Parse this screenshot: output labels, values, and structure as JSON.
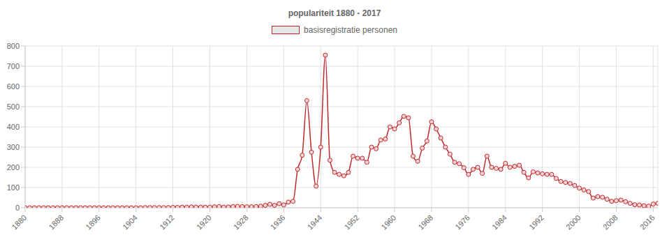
{
  "chart_data": {
    "type": "line",
    "title": "populariteit 1880 - 2017",
    "x": [
      1880,
      1881,
      1882,
      1883,
      1884,
      1885,
      1886,
      1887,
      1888,
      1889,
      1890,
      1891,
      1892,
      1893,
      1894,
      1895,
      1896,
      1897,
      1898,
      1899,
      1900,
      1901,
      1902,
      1903,
      1904,
      1905,
      1906,
      1907,
      1908,
      1909,
      1910,
      1911,
      1912,
      1913,
      1914,
      1915,
      1916,
      1917,
      1918,
      1919,
      1920,
      1921,
      1922,
      1923,
      1924,
      1925,
      1926,
      1927,
      1928,
      1929,
      1930,
      1931,
      1932,
      1933,
      1934,
      1935,
      1936,
      1937,
      1938,
      1939,
      1940,
      1941,
      1942,
      1943,
      1944,
      1945,
      1946,
      1947,
      1948,
      1949,
      1950,
      1951,
      1952,
      1953,
      1954,
      1955,
      1956,
      1957,
      1958,
      1959,
      1960,
      1961,
      1962,
      1963,
      1964,
      1965,
      1966,
      1967,
      1968,
      1969,
      1970,
      1971,
      1972,
      1973,
      1974,
      1975,
      1976,
      1977,
      1978,
      1979,
      1980,
      1981,
      1982,
      1983,
      1984,
      1985,
      1986,
      1987,
      1988,
      1989,
      1990,
      1991,
      1992,
      1993,
      1994,
      1995,
      1996,
      1997,
      1998,
      1999,
      2000,
      2001,
      2002,
      2003,
      2004,
      2005,
      2006,
      2007,
      2008,
      2009,
      2010,
      2011,
      2012,
      2013,
      2014,
      2015,
      2016,
      2017
    ],
    "series": [
      {
        "name": "basisregistratie personen",
        "color": "#c1272d",
        "marker": "circle",
        "values": [
          0,
          0,
          0,
          0,
          0,
          0,
          0,
          0,
          0,
          0,
          0,
          0,
          0,
          0,
          0,
          0,
          0,
          0,
          0,
          0,
          0,
          0,
          0,
          0,
          0,
          0,
          1,
          1,
          1,
          1,
          1,
          1,
          2,
          2,
          3,
          3,
          4,
          3,
          3,
          3,
          3,
          5,
          6,
          3,
          4,
          6,
          7,
          6,
          5,
          5,
          6,
          8,
          12,
          17,
          12,
          20,
          14,
          28,
          32,
          190,
          260,
          530,
          275,
          107,
          300,
          755,
          235,
          175,
          165,
          158,
          175,
          255,
          245,
          245,
          225,
          300,
          292,
          335,
          340,
          400,
          390,
          420,
          452,
          445,
          255,
          230,
          295,
          330,
          425,
          390,
          345,
          300,
          265,
          225,
          218,
          198,
          165,
          190,
          200,
          170,
          255,
          200,
          195,
          190,
          220,
          200,
          205,
          210,
          175,
          148,
          178,
          172,
          168,
          165,
          165,
          145,
          130,
          125,
          120,
          110,
          97,
          88,
          80,
          48,
          55,
          52,
          42,
          32,
          35,
          38,
          30,
          22,
          15,
          14,
          10,
          8,
          18,
          22
        ]
      }
    ],
    "xlim": [
      1880,
      2017
    ],
    "xticks": [
      1880,
      1888,
      1896,
      1904,
      1912,
      1920,
      1928,
      1936,
      1944,
      1952,
      1960,
      1968,
      1976,
      1984,
      1992,
      2000,
      2008,
      2016
    ],
    "ylim": [
      0,
      800
    ],
    "yticks": [
      0,
      100,
      200,
      300,
      400,
      500,
      600,
      700,
      800
    ],
    "grid": true,
    "legend": "top"
  }
}
